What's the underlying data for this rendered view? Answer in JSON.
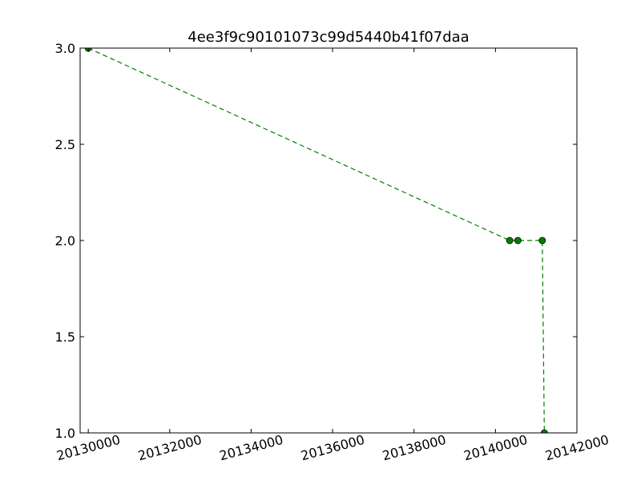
{
  "chart_data": {
    "type": "line",
    "title": "4ee3f9c90101073c99d5440b41f07daa",
    "xlabel": "",
    "ylabel": "",
    "xlim": [
      20129800,
      20142000
    ],
    "ylim": [
      1.0,
      3.0
    ],
    "x_ticks": [
      20130000,
      20132000,
      20134000,
      20136000,
      20138000,
      20140000,
      20142000
    ],
    "x_tick_labels": [
      "20130000",
      "20132000",
      "20134000",
      "20136000",
      "20138000",
      "20140000",
      "20142000"
    ],
    "y_ticks": [
      1.0,
      1.5,
      2.0,
      2.5,
      3.0
    ],
    "y_tick_labels": [
      "1.0",
      "1.5",
      "2.0",
      "2.5",
      "3.0"
    ],
    "grid": false,
    "series": [
      {
        "style": "dashed line with circle markers",
        "color": "#008000",
        "x": [
          20130000,
          20140350,
          20140550,
          20141150,
          20141200
        ],
        "y": [
          3.0,
          2.0,
          2.0,
          2.0,
          1.0
        ]
      }
    ]
  }
}
